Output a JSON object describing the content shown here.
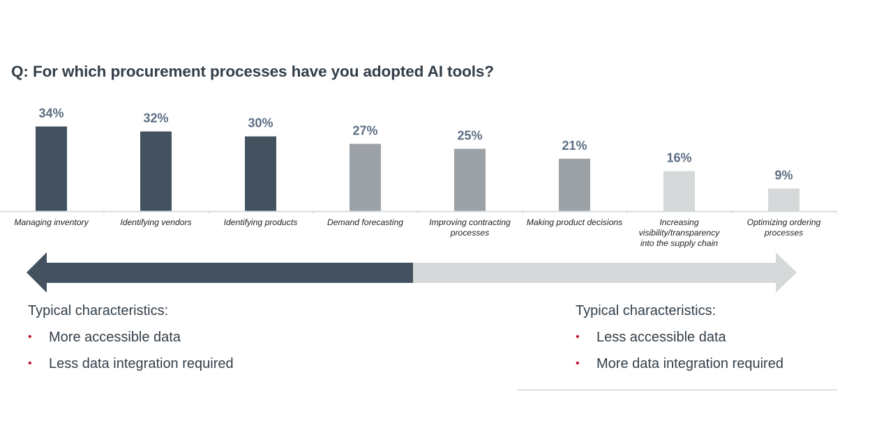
{
  "title": "Q: For which procurement processes have you adopted AI tools?",
  "chart_data": {
    "type": "bar",
    "title": "Q: For which procurement processes have you adopted AI tools?",
    "xlabel": "",
    "ylabel": "",
    "ylim": [
      0,
      40
    ],
    "grid": false,
    "categories": [
      "Managing inventory",
      "Identifying vendors",
      "Identifying products",
      "Demand forecasting",
      "Improving contracting processes",
      "Making product decisions",
      "Increasing visibility/transparency into the supply chain",
      "Optimizing ordering processes"
    ],
    "category_lines": [
      [
        "Managing inventory"
      ],
      [
        "Identifying vendors"
      ],
      [
        "Identifying products"
      ],
      [
        "Demand forecasting"
      ],
      [
        "Improving contracting",
        "processes"
      ],
      [
        "Making product decisions"
      ],
      [
        "Increasing",
        "visibility/transparency",
        "into the supply chain"
      ],
      [
        "Optimizing ordering",
        "processes"
      ]
    ],
    "values": [
      34,
      32,
      30,
      27,
      25,
      21,
      16,
      9
    ],
    "data_labels": [
      "34%",
      "32%",
      "30%",
      "27%",
      "25%",
      "21%",
      "16%",
      "9%"
    ],
    "bar_colors": [
      "#44525f",
      "#44525f",
      "#44525f",
      "#9ca1a5",
      "#9ca1a5",
      "#9ca1a5",
      "#d6d9da",
      "#d6d9da"
    ],
    "label_color": "#5b6e82"
  },
  "arrow": {
    "left_color": "#44525f",
    "right_color": "#d6d9da"
  },
  "left_characteristics": {
    "heading": "Typical characteristics:",
    "items": [
      "More accessible data",
      "Less data integration required"
    ]
  },
  "right_characteristics": {
    "heading": "Typical characteristics:",
    "items": [
      "Less accessible data",
      "More data integration required"
    ]
  },
  "bullet_color": "#c8102e",
  "bullet_char": "•"
}
